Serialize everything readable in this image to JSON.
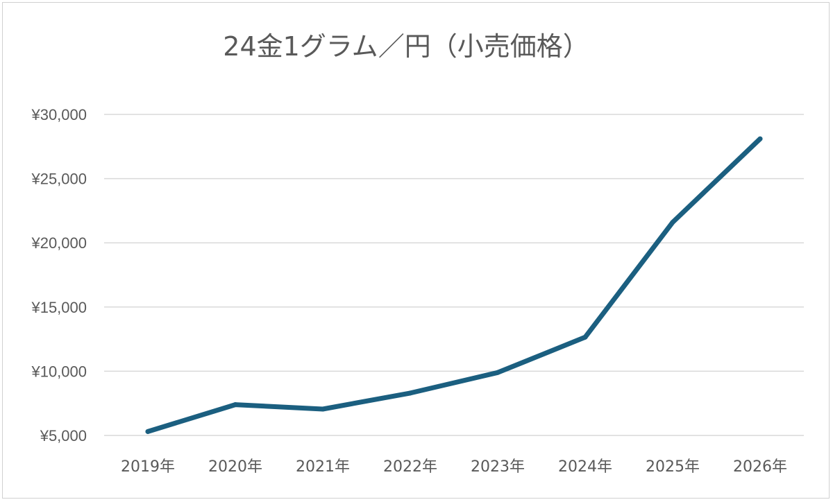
{
  "chart_data": {
    "type": "line",
    "title": "24金1グラム／円（小売価格）",
    "xlabel": "",
    "ylabel": "",
    "categories": [
      "2019年",
      "2020年",
      "2021年",
      "2022年",
      "2023年",
      "2024年",
      "2025年",
      "2026年"
    ],
    "series": [
      {
        "values": [
          5300,
          7400,
          7050,
          8300,
          9900,
          12650,
          21600,
          28100
        ],
        "color": "#1b5f80"
      }
    ],
    "ylim": [
      5000,
      30000
    ],
    "yticks": [
      5000,
      10000,
      15000,
      20000,
      25000,
      30000
    ],
    "ytick_labels": [
      "¥5,000",
      "¥10,000",
      "¥15,000",
      "¥20,000",
      "¥25,000",
      "¥30,000"
    ],
    "grid": true,
    "legend": "none"
  }
}
